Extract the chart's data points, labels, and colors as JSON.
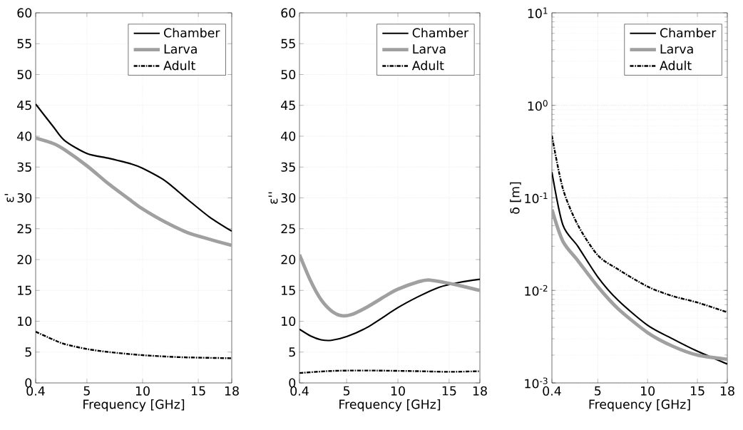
{
  "chart_data": [
    {
      "type": "line",
      "xlabel": "Frequency [GHz]",
      "ylabel": "ε'",
      "xlim": [
        0.4,
        18
      ],
      "ylim": [
        0,
        60
      ],
      "xticks": [
        0.4,
        5,
        10,
        15,
        18
      ],
      "yticks": [
        0,
        5,
        10,
        15,
        20,
        25,
        30,
        35,
        40,
        45,
        50,
        55,
        60
      ],
      "grid": true,
      "legend": "top right",
      "marker": "none",
      "series": [
        {
          "name": "Chamber",
          "color": "#000000",
          "line_style": "solid",
          "x": [
            0.4,
            2,
            3,
            5,
            7,
            9,
            10,
            12,
            14,
            16,
            18
          ],
          "values": [
            45.2,
            41.5,
            39.3,
            37.2,
            36.4,
            35.5,
            34.8,
            32.8,
            29.8,
            26.9,
            24.6
          ]
        },
        {
          "name": "Larva",
          "color": "#a0a0a0",
          "line_style": "solid",
          "x": [
            0.4,
            2,
            3,
            5,
            7,
            9,
            10,
            12,
            14,
            16,
            18
          ],
          "values": [
            39.7,
            38.8,
            37.8,
            35.2,
            32.2,
            29.5,
            28.2,
            26.1,
            24.4,
            23.3,
            22.3
          ]
        },
        {
          "name": "Adult",
          "color": "#000000",
          "line_style": "dashed",
          "x": [
            0.4,
            2,
            3,
            5,
            7,
            10,
            13,
            15,
            18
          ],
          "values": [
            8.3,
            7.0,
            6.3,
            5.5,
            5.0,
            4.5,
            4.2,
            4.1,
            4.0
          ]
        }
      ]
    },
    {
      "type": "line",
      "xlabel": "Frequency [GHz]",
      "ylabel": "ε''",
      "xlim": [
        0.4,
        18
      ],
      "ylim": [
        0,
        60
      ],
      "xticks": [
        0.4,
        5,
        10,
        15,
        18
      ],
      "yticks": [
        0,
        5,
        10,
        15,
        20,
        25,
        30,
        35,
        40,
        45,
        50,
        55,
        60
      ],
      "grid": true,
      "legend": "top right",
      "marker": "none",
      "series": [
        {
          "name": "Chamber",
          "color": "#000000",
          "line_style": "solid",
          "x": [
            0.4,
            1.5,
            2.5,
            3.5,
            5,
            7,
            10,
            12,
            14,
            16,
            18
          ],
          "values": [
            8.7,
            7.6,
            7.0,
            6.9,
            7.5,
            9.0,
            12.2,
            14.0,
            15.5,
            16.3,
            16.8
          ]
        },
        {
          "name": "Larva",
          "color": "#a0a0a0",
          "line_style": "solid",
          "x": [
            0.4,
            1.5,
            2.5,
            3.5,
            4.5,
            5.5,
            7,
            9,
            10,
            12,
            13,
            14.5,
            16,
            18
          ],
          "values": [
            20.8,
            16.5,
            13.5,
            11.7,
            10.9,
            11.1,
            12.3,
            14.3,
            15.2,
            16.4,
            16.7,
            16.3,
            15.8,
            15.0
          ]
        },
        {
          "name": "Adult",
          "color": "#000000",
          "line_style": "dashed",
          "x": [
            0.4,
            3,
            5,
            8,
            12,
            15,
            18
          ],
          "values": [
            1.6,
            1.9,
            2.0,
            2.0,
            1.9,
            1.8,
            1.9
          ]
        }
      ]
    },
    {
      "type": "line",
      "xlabel": "Frequency [GHz]",
      "ylabel": "δ [m]",
      "log": "y",
      "xlim": [
        0.4,
        18
      ],
      "ylim": [
        0.001,
        10
      ],
      "xticks": [
        0.4,
        5,
        10,
        15,
        18
      ],
      "yticks": [
        {
          "value": 0.001,
          "label": "10$^{-3}$"
        },
        {
          "value": 0.01,
          "label": "10$^{-2}$"
        },
        {
          "value": 0.1,
          "label": "10$^{-1}$"
        },
        {
          "value": 1,
          "label": "10$^{0}$"
        },
        {
          "value": 10,
          "label": "10$^{1}$"
        }
      ],
      "grid": true,
      "legend": "top right",
      "marker": "none",
      "series": [
        {
          "name": "Chamber",
          "color": "#000000",
          "line_style": "solid",
          "x": [
            0.4,
            1.5,
            3,
            5,
            7,
            10,
            12.5,
            15,
            18
          ],
          "values": [
            0.19,
            0.051,
            0.03,
            0.014,
            0.0079,
            0.0042,
            0.003,
            0.0022,
            0.0016
          ]
        },
        {
          "name": "Larva",
          "color": "#a0a0a0",
          "line_style": "solid",
          "x": [
            0.4,
            1.5,
            3,
            5,
            7,
            10,
            12.5,
            15,
            18
          ],
          "values": [
            0.075,
            0.034,
            0.021,
            0.011,
            0.0064,
            0.0035,
            0.0025,
            0.002,
            0.0018
          ]
        },
        {
          "name": "Adult",
          "color": "#000000",
          "line_style": "dashed",
          "x": [
            0.4,
            1.5,
            3,
            5,
            7,
            10,
            12.5,
            15,
            18
          ],
          "values": [
            0.47,
            0.126,
            0.051,
            0.024,
            0.017,
            0.011,
            0.0087,
            0.0074,
            0.0058
          ]
        }
      ]
    }
  ]
}
